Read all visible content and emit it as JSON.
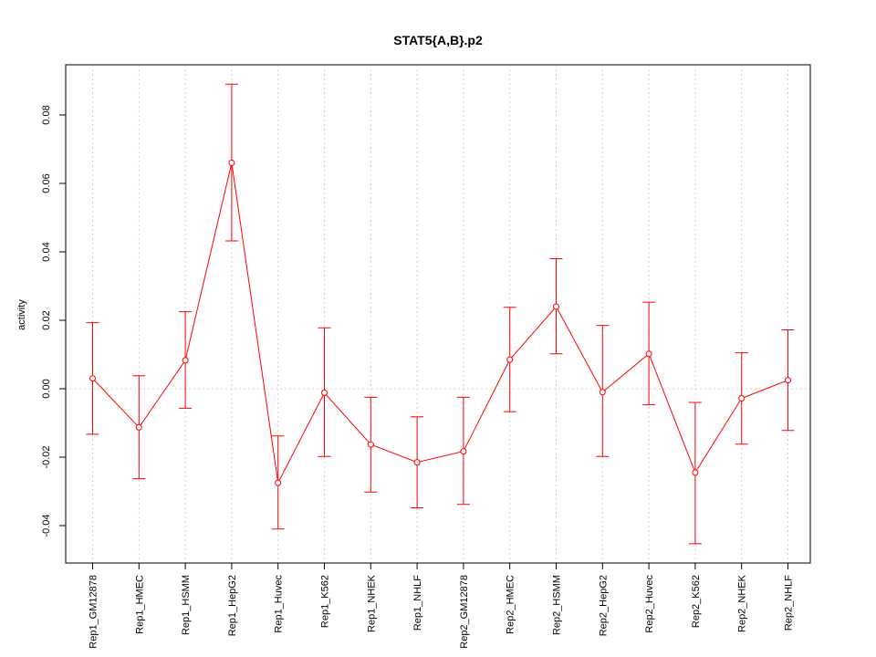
{
  "chart_data": {
    "type": "line",
    "title": "STAT5{A,B}.p2",
    "xlabel": "",
    "ylabel": "activity",
    "ylim": [
      -0.05,
      0.092
    ],
    "yticks": [
      -0.04,
      -0.02,
      0.0,
      0.02,
      0.04,
      0.06,
      0.08
    ],
    "ytick_labels": [
      "-0.04",
      "-0.02",
      "0.00",
      "0.02",
      "0.04",
      "0.06",
      "0.08"
    ],
    "grid": true,
    "color": "#ff0000",
    "categories": [
      "Rep1_GM12878",
      "Rep1_HMEC",
      "Rep1_HSMM",
      "Rep1_HepG2",
      "Rep1_Huvec",
      "Rep1_K562",
      "Rep1_NHEK",
      "Rep1_NHLF",
      "Rep2_GM12878",
      "Rep2_HMEC",
      "Rep2_HSMM",
      "Rep2_HepG2",
      "Rep2_Huvec",
      "Rep2_K562",
      "Rep2_NHEK",
      "Rep2_NHLF"
    ],
    "values": [
      0.003,
      -0.0113,
      0.0083,
      0.066,
      -0.0275,
      -0.0012,
      -0.0163,
      -0.0215,
      -0.0183,
      0.0085,
      0.024,
      -0.001,
      0.0102,
      -0.0245,
      -0.0028,
      0.0025
    ],
    "error_upper": [
      0.0193,
      0.0038,
      0.0225,
      0.089,
      -0.0138,
      0.0178,
      -0.0025,
      -0.0082,
      -0.0025,
      0.0238,
      0.038,
      0.0185,
      0.0253,
      -0.004,
      0.0105,
      0.0172
    ],
    "error_lower": [
      -0.0133,
      -0.0263,
      -0.0057,
      0.0432,
      -0.041,
      -0.0198,
      -0.0302,
      -0.0348,
      -0.0338,
      -0.0067,
      0.0102,
      -0.0198,
      -0.0047,
      -0.0453,
      -0.0162,
      -0.0122
    ]
  }
}
